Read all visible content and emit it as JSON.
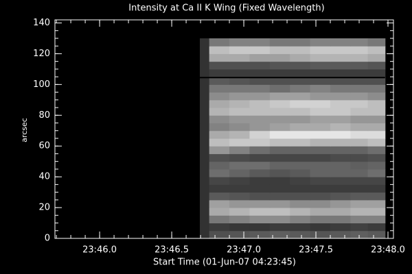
{
  "chart_data": {
    "type": "heatmap",
    "title": "Intensity at Ca II K Wing (Fixed Wavelength)",
    "xlabel": "Start Time (01-Jun-07 04:23:45)",
    "ylabel": "arcsec",
    "xlim": [
      45.69,
      48.038
    ],
    "ylim": [
      0,
      142
    ],
    "xticks": [
      {
        "value": 46.0,
        "label": "23:46.0"
      },
      {
        "value": 46.5,
        "label": "23:46.5"
      },
      {
        "value": 47.0,
        "label": "23:47.0"
      },
      {
        "value": 47.5,
        "label": "23:47.5"
      },
      {
        "value": 48.0,
        "label": "23:48.0"
      }
    ],
    "yticks": [
      0,
      20,
      40,
      60,
      80,
      100,
      120,
      140
    ],
    "xminor": 5,
    "yminor": 4,
    "colormap": "gray",
    "zlim": [
      0,
      255
    ],
    "xbins": [
      46.695,
      46.76,
      46.9,
      47.04,
      47.18,
      47.32,
      47.46,
      47.6,
      47.74,
      47.86,
      47.98
    ],
    "ybins": [
      0,
      5,
      10,
      15,
      20,
      25,
      30,
      35,
      40,
      45,
      50,
      55,
      60,
      65,
      70,
      75,
      80,
      85,
      90,
      95,
      100,
      105,
      110,
      115,
      120,
      125,
      130
    ],
    "z": [
      [
        50,
        80,
        85,
        90,
        95,
        90,
        85,
        90,
        95,
        90
      ],
      [
        50,
        60,
        55,
        55,
        60,
        60,
        55,
        60,
        65,
        60
      ],
      [
        50,
        120,
        130,
        140,
        140,
        130,
        120,
        120,
        130,
        130
      ],
      [
        50,
        170,
        180,
        190,
        190,
        180,
        170,
        170,
        180,
        180
      ],
      [
        50,
        160,
        150,
        150,
        150,
        140,
        140,
        150,
        160,
        160
      ],
      [
        50,
        90,
        85,
        80,
        80,
        80,
        80,
        85,
        90,
        90
      ],
      [
        50,
        60,
        60,
        60,
        60,
        60,
        60,
        60,
        60,
        60
      ],
      [
        50,
        70,
        65,
        60,
        60,
        65,
        70,
        70,
        70,
        70
      ],
      [
        50,
        110,
        100,
        90,
        85,
        90,
        100,
        100,
        100,
        110
      ],
      [
        50,
        100,
        110,
        110,
        100,
        100,
        100,
        100,
        95,
        100
      ],
      [
        50,
        80,
        75,
        70,
        70,
        70,
        70,
        75,
        75,
        80
      ],
      [
        50,
        150,
        130,
        110,
        100,
        100,
        100,
        100,
        100,
        110
      ],
      [
        50,
        190,
        200,
        200,
        190,
        190,
        180,
        180,
        180,
        190
      ],
      [
        50,
        170,
        180,
        210,
        230,
        230,
        230,
        230,
        220,
        220
      ],
      [
        50,
        130,
        140,
        150,
        160,
        170,
        170,
        180,
        170,
        170
      ],
      [
        50,
        140,
        150,
        150,
        150,
        150,
        160,
        160,
        150,
        150
      ],
      [
        50,
        180,
        190,
        190,
        190,
        190,
        200,
        200,
        190,
        190
      ],
      [
        50,
        170,
        180,
        190,
        200,
        210,
        210,
        200,
        200,
        190
      ],
      [
        50,
        140,
        150,
        150,
        160,
        160,
        150,
        150,
        150,
        140
      ],
      [
        50,
        120,
        120,
        120,
        110,
        120,
        130,
        120,
        120,
        120
      ],
      [
        50,
        90,
        85,
        80,
        80,
        80,
        80,
        80,
        80,
        80
      ],
      [
        50,
        60,
        60,
        60,
        60,
        60,
        60,
        60,
        60,
        60
      ],
      [
        50,
        80,
        80,
        80,
        85,
        85,
        90,
        90,
        90,
        85
      ],
      [
        50,
        170,
        170,
        160,
        160,
        170,
        180,
        180,
        180,
        170
      ],
      [
        50,
        190,
        200,
        200,
        190,
        190,
        200,
        200,
        200,
        190
      ],
      [
        50,
        120,
        130,
        130,
        120,
        120,
        130,
        130,
        130,
        120
      ]
    ],
    "hline": 104.5,
    "hline_color": "#000000"
  }
}
